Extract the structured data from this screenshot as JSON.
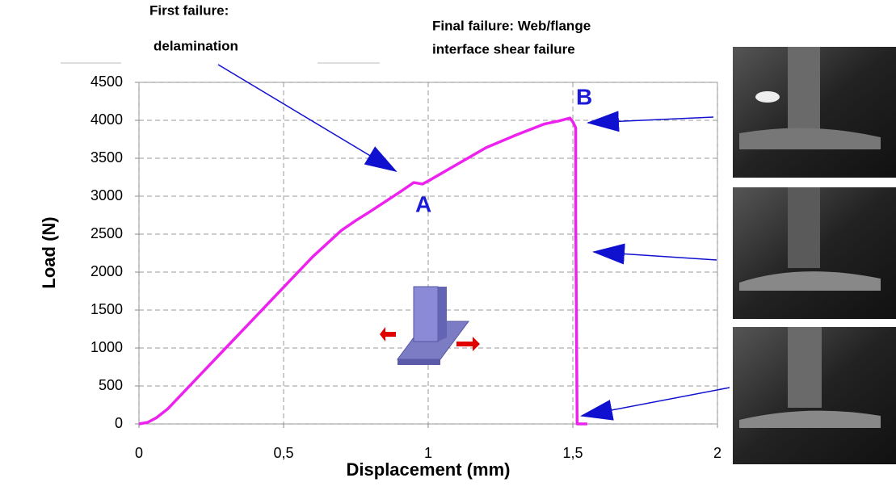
{
  "chart_data": {
    "type": "line",
    "x": [
      0,
      0.03,
      0.06,
      0.1,
      0.2,
      0.3,
      0.4,
      0.5,
      0.6,
      0.7,
      0.75,
      0.8,
      0.9,
      0.95,
      0.98,
      1.0,
      1.1,
      1.2,
      1.3,
      1.4,
      1.45,
      1.49,
      1.5,
      1.51,
      1.51,
      1.515,
      1.55
    ],
    "values": [
      0,
      20,
      80,
      200,
      600,
      1000,
      1400,
      1800,
      2200,
      2550,
      2680,
      2800,
      3050,
      3180,
      3160,
      3200,
      3420,
      3640,
      3800,
      3950,
      3990,
      4030,
      3980,
      3900,
      2700,
      0,
      0
    ],
    "color": "#ee22ee",
    "xlabel": "Displacement (mm)",
    "ylabel": "Load (N)",
    "xlim": [
      0,
      2
    ],
    "ylim": [
      0,
      4500
    ],
    "xticks": [
      0,
      {
        "value": 0.5,
        "label": "0,5"
      },
      1,
      {
        "value": 1.5,
        "label": "1,5"
      },
      2
    ],
    "yticks": [
      0,
      500,
      1000,
      1500,
      2000,
      2500,
      3000,
      3500,
      4000,
      4500
    ],
    "grid": true,
    "annotations": [
      "First failure:",
      "delamination",
      "Final failure: Web/flange",
      "interface shear failure",
      "A",
      "B"
    ]
  }
}
